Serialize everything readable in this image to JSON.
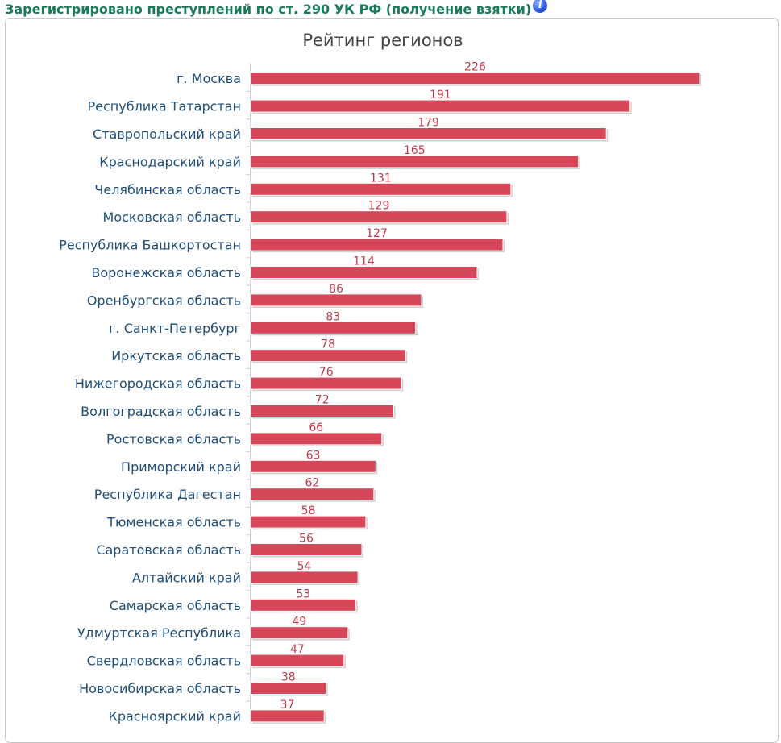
{
  "header": {
    "title": "Зарегистрировано преступлений по ст. 290 УК РФ (получение взятки)",
    "info_icon_glyph": "i"
  },
  "colors": {
    "bar": "#d6475a",
    "header_text": "#1a7a5c",
    "label_text": "#1f4e79",
    "value_text": "#c0394b"
  },
  "chart_data": {
    "type": "bar",
    "orientation": "horizontal",
    "title": "Рейтинг регионов",
    "xlim": [
      0,
      226
    ],
    "grid": false,
    "categories": [
      "г. Москва",
      "Республика Татарстан",
      "Ставропольский край",
      "Краснодарский край",
      "Челябинская область",
      "Московская область",
      "Республика Башкортостан",
      "Воронежская область",
      "Оренбургская область",
      "г. Санкт-Петербург",
      "Иркутская область",
      "Нижегородская область",
      "Волгоградская область",
      "Ростовская область",
      "Приморский край",
      "Республика Дагестан",
      "Тюменская область",
      "Саратовская область",
      "Алтайский край",
      "Самарская область",
      "Удмуртская Республика",
      "Свердловская область",
      "Новосибирская область",
      "Красноярский край"
    ],
    "values": [
      226,
      191,
      179,
      165,
      131,
      129,
      127,
      114,
      86,
      83,
      78,
      76,
      72,
      66,
      63,
      62,
      58,
      56,
      54,
      53,
      49,
      47,
      38,
      37
    ]
  }
}
